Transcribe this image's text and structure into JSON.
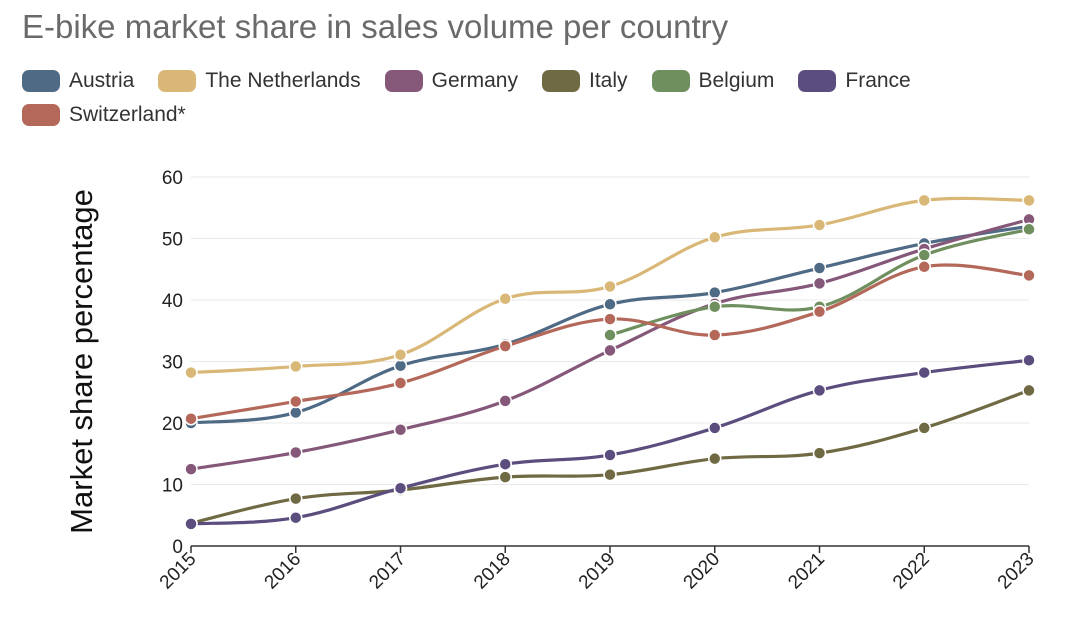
{
  "chart_data": {
    "type": "line",
    "title": "E-bike market share in sales volume per country",
    "xlabel": "",
    "ylabel": "Market share percentage",
    "categories": [
      "2015",
      "2016",
      "2017",
      "2018",
      "2019",
      "2020",
      "2021",
      "2022",
      "2023"
    ],
    "ylim": [
      0,
      60
    ],
    "yticks": [
      0,
      10,
      20,
      30,
      40,
      50,
      60
    ],
    "grid": true,
    "legend_position": "top-left",
    "series": [
      {
        "name": "Austria",
        "color": "#4e6a85",
        "values": [
          20,
          21.7,
          29.3,
          32.8,
          39.3,
          41.2,
          45.2,
          49.2,
          52
        ]
      },
      {
        "name": "The Netherlands",
        "color": "#d9b877",
        "values": [
          28.2,
          29.2,
          31.1,
          40.2,
          42.2,
          50.2,
          52.2,
          56.2,
          56.2
        ]
      },
      {
        "name": "Germany",
        "color": "#85587a",
        "values": [
          12.5,
          15.2,
          18.9,
          23.6,
          31.8,
          39.4,
          42.7,
          48.3,
          53.1
        ]
      },
      {
        "name": "Italy",
        "color": "#6f6a43",
        "values": [
          3.7,
          7.7,
          9.1,
          11.2,
          11.6,
          14.2,
          15.1,
          19.2,
          25.3
        ]
      },
      {
        "name": "Belgium",
        "color": "#6f8f5e",
        "values": [
          null,
          null,
          null,
          null,
          34.3,
          38.9,
          38.9,
          47.3,
          51.5
        ]
      },
      {
        "name": "France",
        "color": "#5b4e7e",
        "values": [
          3.6,
          4.6,
          9.4,
          13.3,
          14.8,
          19.2,
          25.3,
          28.2,
          30.2
        ]
      },
      {
        "name": "Switzerland*",
        "color": "#b3685a",
        "values": [
          20.7,
          23.5,
          26.5,
          32.5,
          36.9,
          34.3,
          38.1,
          45.4,
          44
        ]
      }
    ]
  }
}
